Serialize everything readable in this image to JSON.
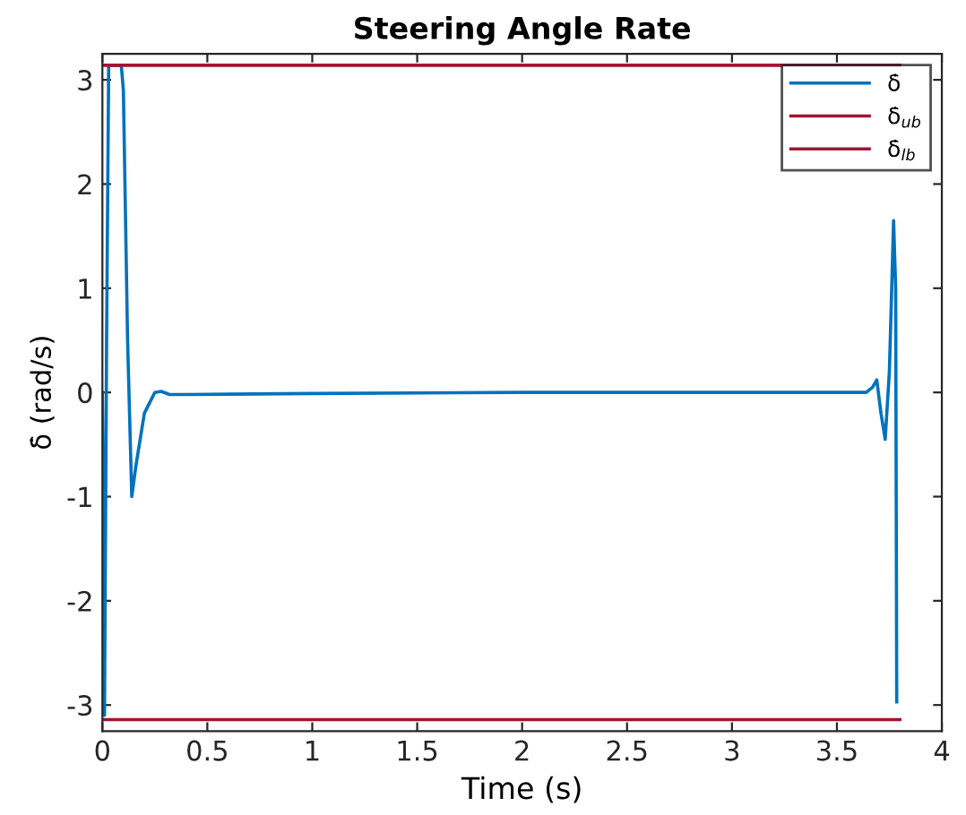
{
  "chart_data": {
    "type": "line",
    "title": "Steering Angle Rate",
    "xlabel": "Time (s)",
    "ylabel": "δ̇ (rad/s)",
    "series": [
      {
        "name": "δ̇",
        "color": "#0072bd",
        "x": [
          0,
          0.005,
          0.01,
          0.02,
          0.03,
          0.06,
          0.09,
          0.1,
          0.12,
          0.14,
          0.16,
          0.2,
          0.25,
          0.28,
          0.32,
          0.4,
          1.0,
          2.0,
          3.0,
          3.5,
          3.62,
          3.64,
          3.67,
          3.69,
          3.71,
          3.73,
          3.75,
          3.77,
          3.78,
          3.785
        ],
        "values": [
          0,
          -1.5,
          -3.1,
          0.5,
          3.14,
          3.14,
          3.14,
          2.9,
          0.5,
          -1.0,
          -0.7,
          -0.2,
          0.0,
          0.01,
          -0.02,
          -0.02,
          -0.01,
          0,
          0,
          0,
          0,
          0.0,
          0.05,
          0.12,
          -0.2,
          -0.45,
          0.2,
          1.65,
          1.0,
          -2.97
        ]
      },
      {
        "name": "δ̇$_{ub}$",
        "color": "#a2142f",
        "x": [
          0,
          3.8
        ],
        "values": [
          3.14,
          3.14
        ]
      },
      {
        "name": "δ̇$_{lb}$",
        "color": "#a2142f",
        "x": [
          0,
          3.8
        ],
        "values": [
          -3.14,
          -3.14
        ]
      }
    ],
    "xlim": [
      0,
      4
    ],
    "ylim": [
      -3.25,
      3.25
    ],
    "xticks": [
      0,
      0.5,
      1,
      1.5,
      2,
      2.5,
      3,
      3.5,
      4
    ],
    "yticks": [
      -3,
      -2,
      -1,
      0,
      1,
      2,
      3
    ],
    "grid": false,
    "legend": "top right",
    "marker": "none",
    "line_style": "solid"
  }
}
